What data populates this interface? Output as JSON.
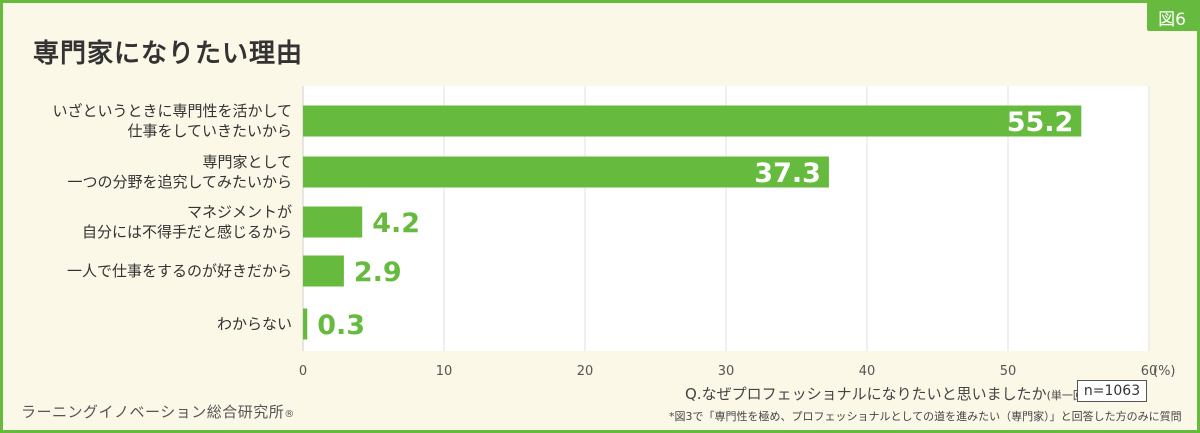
{
  "badge": "図6",
  "title": "専門家になりたい理由",
  "question": "Q.なぜプロフェッショナルになりたいと思いましたか",
  "question_note": "(単一回答)",
  "sample": "n=1063",
  "footnote": "*図3で「専門性を極め、プロフェッショナルとしての道を進みたい（専門家）」と回答した方のみに質問",
  "source": "ラーニングイノベーション総合研究所",
  "source_mark": "®",
  "colors": {
    "bar": "#66bb3f",
    "frame": "#66bb3f",
    "grid": "#e2e2e2",
    "background": "#fbf8e8"
  },
  "chart_data": {
    "type": "bar",
    "orientation": "horizontal",
    "categories": [
      [
        "いざというときに専門性を活かして",
        "仕事をしていきたいから"
      ],
      [
        "専門家として",
        "一つの分野を追究してみたいから"
      ],
      [
        "マネジメントが",
        "自分には不得手だと感じるから"
      ],
      [
        "一人で仕事をするのが好きだから"
      ],
      [
        "わからない"
      ]
    ],
    "values": [
      55.2,
      37.3,
      4.2,
      2.9,
      0.3
    ],
    "value_labels": [
      "55.2",
      "37.3",
      "4.2",
      "2.9",
      "0.3"
    ],
    "xlim": [
      0,
      60
    ],
    "ticks": [
      "0",
      "10",
      "20",
      "30",
      "40",
      "50",
      "60"
    ],
    "unit": "(%)",
    "grid": true
  }
}
